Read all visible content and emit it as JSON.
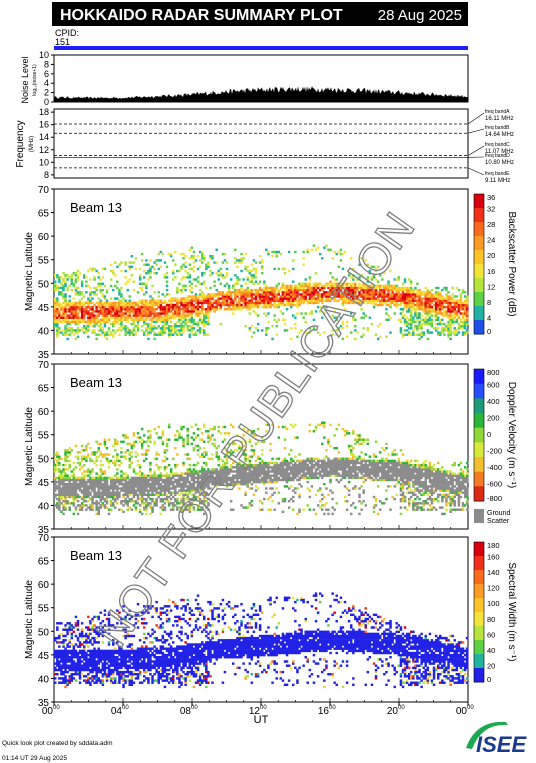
{
  "header": {
    "title": "HOKKAIDO RADAR SUMMARY PLOT",
    "date": "28 Aug 2025",
    "cpid_label": "CPID:",
    "cpid_value": "151"
  },
  "colors": {
    "header_bg": "#000000",
    "cpid_bar": "#1f1fff",
    "ground_scatter": "#8c8c8c",
    "watermark": "#7f7f7f"
  },
  "noise": {
    "ylabel": "Noise Level",
    "ylabel_small": "log₁₀(noise+1)",
    "yticks": [
      0,
      2,
      4,
      6,
      8,
      10
    ]
  },
  "frequency": {
    "ylabel": "Frequency",
    "unit": "(MHz)",
    "yticks": [
      8,
      10,
      12,
      14,
      16,
      18
    ],
    "bands": [
      {
        "name": "freq bandA",
        "value": "16.11 MHz",
        "mhz": 16.11
      },
      {
        "name": "freq bandB",
        "value": "14.64 MHz",
        "mhz": 14.64
      },
      {
        "name": "freq bandC",
        "value": "11.07 MHz",
        "mhz": 11.07
      },
      {
        "name": "freq bandD",
        "value": "10.80 MHz",
        "mhz": 10.8
      },
      {
        "name": "freq bandE",
        "value": "9.11 MHz",
        "mhz": 9.11
      }
    ]
  },
  "panels": [
    {
      "beam": "Beam 13",
      "ylabel": "Magnetic Latitude",
      "cbar_label": "Backscatter Power (dB)",
      "cticks": [
        "36",
        "32",
        "28",
        "24",
        "20",
        "16",
        "12",
        "8",
        "4",
        "0"
      ],
      "scale": "power"
    },
    {
      "beam": "Beam 13",
      "ylabel": "Magnetic Latitude",
      "cbar_label": "Doppler Velocity (m s⁻¹)",
      "cticks": [
        "800",
        "600",
        "400",
        "200",
        "0",
        "-200",
        "-400",
        "-600",
        "-800"
      ],
      "scale": "velocity",
      "gs_label_1": "Ground",
      "gs_label_2": "Scatter"
    },
    {
      "beam": "Beam 13",
      "ylabel": "Magnetic Latitude",
      "cbar_label": "Spectral Width (m s⁻¹)",
      "cticks": [
        "180",
        "160",
        "140",
        "120",
        "100",
        "80",
        "60",
        "40",
        "20",
        "0"
      ],
      "scale": "width"
    }
  ],
  "lat_ticks": [
    35,
    40,
    45,
    50,
    55,
    60,
    65,
    70
  ],
  "time_ticks": [
    "00",
    "04",
    "08",
    "12",
    "16",
    "20",
    "00"
  ],
  "time_tick_sup": "00",
  "xlabel": "UT",
  "footer": {
    "line1": "Quick look plot created by sddata.adm",
    "line2": "01:14 UT 29 Aug 2025",
    "logo": "ISEE"
  },
  "watermark": "NOT FOR PUBLICATION",
  "chart_data": {
    "type": "heatmap",
    "title": "HOKKAIDO RADAR SUMMARY PLOT",
    "x": "UT 00 to 24 hours",
    "xlabel": "UT",
    "ylabel": "Magnetic Latitude",
    "ylim": [
      35,
      70
    ],
    "xlim_hours": [
      0,
      24
    ],
    "grid": false,
    "noise_level": {
      "ylim": [
        0,
        10
      ],
      "hours": [
        0,
        2,
        4,
        6,
        8,
        10,
        12,
        14,
        16,
        18,
        20,
        22,
        24
      ],
      "values": [
        1.0,
        0.9,
        0.9,
        1.2,
        1.6,
        2.2,
        2.6,
        2.8,
        2.7,
        2.4,
        2.0,
        1.6,
        1.2
      ]
    },
    "frequency_bands_mhz": [
      16.11,
      14.64,
      11.07,
      10.8,
      9.11
    ],
    "series": [
      {
        "name": "Backscatter Power (dB)",
        "range": [
          0,
          36
        ],
        "main_band_lat": [
          [
            0,
            43.5
          ],
          [
            6,
            44
          ],
          [
            10,
            46
          ],
          [
            16,
            48
          ],
          [
            20,
            47
          ],
          [
            24,
            44
          ]
        ]
      },
      {
        "name": "Doppler Velocity (m s⁻¹)",
        "range": [
          -800,
          800
        ],
        "ground_scatter_lat": [
          [
            0,
            43
          ],
          [
            6,
            44
          ],
          [
            12,
            46
          ],
          [
            16,
            48
          ],
          [
            20,
            47
          ],
          [
            24,
            44
          ]
        ]
      },
      {
        "name": "Spectral Width (m s⁻¹)",
        "range": [
          0,
          180
        ]
      }
    ]
  }
}
